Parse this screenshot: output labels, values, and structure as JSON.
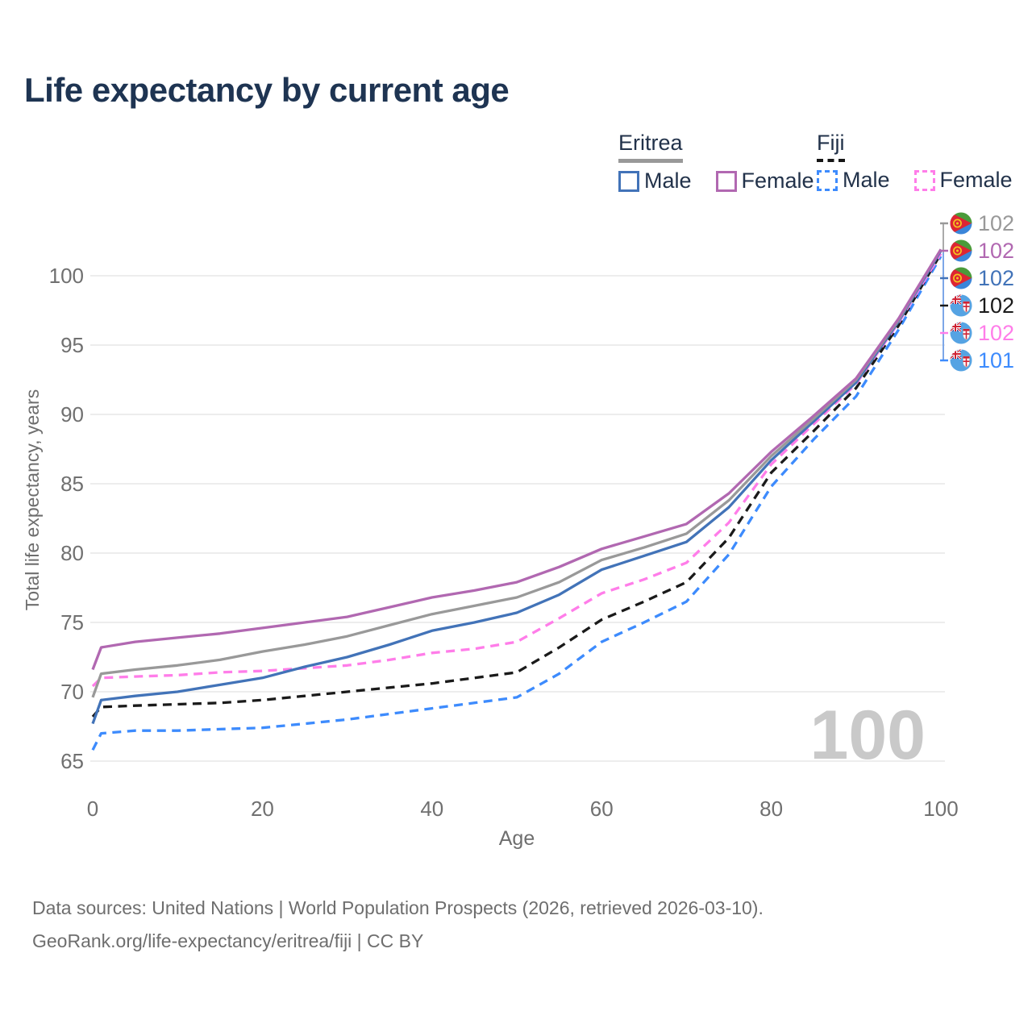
{
  "title": "Life expectancy by current age",
  "legend": {
    "groups": [
      {
        "label": "Eritrea",
        "line_style": "solid",
        "underline_color": "#999999",
        "items": [
          {
            "label": "Male",
            "color": "#4273b8"
          },
          {
            "label": "Female",
            "color": "#b168b1"
          }
        ]
      },
      {
        "label": "Fiji",
        "line_style": "dashed",
        "underline_color": "#161616",
        "items": [
          {
            "label": "Male",
            "color": "#3d8bfd"
          },
          {
            "label": "Female",
            "color": "#ff7de9"
          }
        ]
      }
    ]
  },
  "chart_data": {
    "type": "line",
    "title": "Life expectancy by current age",
    "xlabel": "Age",
    "ylabel": "Total life expectancy, years",
    "x_ticks": [
      0,
      20,
      40,
      60,
      80,
      100
    ],
    "y_ticks": [
      65,
      70,
      75,
      80,
      85,
      90,
      95,
      100
    ],
    "xlim": [
      0,
      100
    ],
    "ylim": [
      65,
      100
    ],
    "grid": "horizontal",
    "age_counter": "100",
    "ages": [
      0,
      1,
      5,
      10,
      15,
      20,
      25,
      30,
      35,
      40,
      45,
      50,
      55,
      60,
      65,
      70,
      75,
      80,
      85,
      90,
      95,
      100
    ],
    "series": [
      {
        "name": "Fiji — Male",
        "country": "Fiji",
        "sex": "male",
        "style": "dashed",
        "color": "#3d8bfd",
        "values": [
          65.8,
          67.0,
          67.2,
          67.2,
          67.3,
          67.4,
          67.7,
          68.0,
          68.4,
          68.8,
          69.2,
          69.6,
          71.3,
          73.6,
          75.0,
          76.5,
          79.9,
          84.8,
          88.2,
          91.3,
          96.1,
          101.4
        ]
      },
      {
        "name": "Fiji — Both sexes",
        "country": "Fiji",
        "sex": "total",
        "style": "dashed",
        "color": "#1a1a1a",
        "values": [
          68.2,
          68.9,
          69.0,
          69.1,
          69.2,
          69.4,
          69.7,
          70.0,
          70.3,
          70.6,
          71.0,
          71.4,
          73.2,
          75.2,
          76.5,
          77.9,
          81.1,
          85.8,
          88.8,
          91.9,
          96.4,
          101.6
        ]
      },
      {
        "name": "Fiji — Female",
        "country": "Fiji",
        "sex": "female",
        "style": "dashed",
        "color": "#ff7de9",
        "values": [
          70.4,
          71.0,
          71.1,
          71.2,
          71.4,
          71.5,
          71.7,
          71.9,
          72.3,
          72.8,
          73.1,
          73.6,
          75.3,
          77.1,
          78.1,
          79.3,
          82.2,
          86.4,
          89.3,
          92.2,
          96.6,
          101.6
        ]
      },
      {
        "name": "Eritrea — Male",
        "country": "Eritrea",
        "sex": "male",
        "style": "solid",
        "color": "#4273b8",
        "values": [
          67.7,
          69.4,
          69.7,
          70.0,
          70.5,
          71.0,
          71.8,
          72.5,
          73.4,
          74.4,
          75.0,
          75.7,
          77.0,
          78.8,
          79.8,
          80.8,
          83.3,
          86.7,
          89.5,
          92.3,
          96.7,
          101.8
        ]
      },
      {
        "name": "Eritrea — Both sexes",
        "country": "Eritrea",
        "sex": "total",
        "style": "solid",
        "color": "#999999",
        "values": [
          69.6,
          71.3,
          71.6,
          71.9,
          72.3,
          72.9,
          73.4,
          74.0,
          74.8,
          75.6,
          76.2,
          76.8,
          77.9,
          79.5,
          80.4,
          81.4,
          83.8,
          87.0,
          89.7,
          92.5,
          96.8,
          101.9
        ]
      },
      {
        "name": "Eritrea — Female",
        "country": "Eritrea",
        "sex": "female",
        "style": "solid",
        "color": "#b168b1",
        "values": [
          71.6,
          73.2,
          73.6,
          73.9,
          74.2,
          74.6,
          75.0,
          75.4,
          76.1,
          76.8,
          77.3,
          77.9,
          79.0,
          80.3,
          81.2,
          82.1,
          84.3,
          87.3,
          89.9,
          92.6,
          96.9,
          101.9
        ]
      }
    ],
    "end_labels": [
      {
        "country": "Eritrea",
        "series": "Both sexes",
        "value": "102",
        "color": "#999999"
      },
      {
        "country": "Eritrea",
        "series": "Female",
        "value": "102",
        "color": "#b168b1"
      },
      {
        "country": "Eritrea",
        "series": "Male",
        "value": "102",
        "color": "#4273b8"
      },
      {
        "country": "Fiji",
        "series": "Both sexes",
        "value": "102",
        "color": "#1a1a1a"
      },
      {
        "country": "Fiji",
        "series": "Female",
        "value": "102",
        "color": "#ff7de9"
      },
      {
        "country": "Fiji",
        "series": "Male",
        "value": "101",
        "color": "#3d8bfd"
      }
    ]
  },
  "footer": {
    "line1": "Data sources: United Nations | World Population Prospects (2026, retrieved 2026-03-10).",
    "line2": "GeoRank.org/life-expectancy/eritrea/fiji | CC BY"
  }
}
